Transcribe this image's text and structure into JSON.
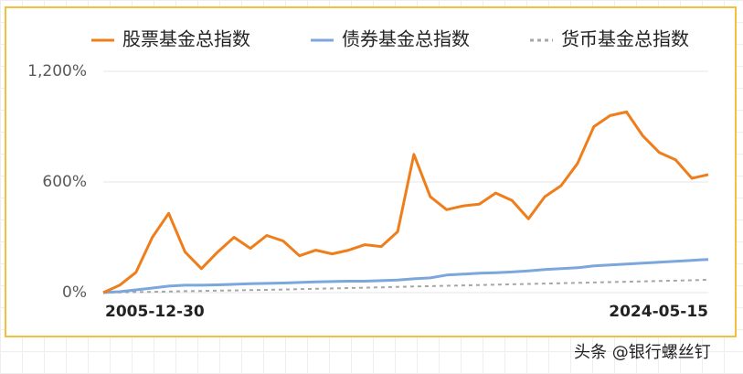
{
  "chart_data": {
    "type": "line",
    "categories": [
      "2005-12-30",
      null,
      null,
      null,
      null,
      null,
      null,
      null,
      null,
      null,
      null,
      null,
      null,
      null,
      null,
      null,
      null,
      null,
      null,
      null,
      null,
      null,
      null,
      null,
      null,
      null,
      null,
      null,
      null,
      null,
      null,
      null,
      null,
      null,
      null,
      null,
      null,
      "2024-05-15"
    ],
    "series": [
      {
        "name": "股票基金总指数",
        "color": "#ef7d1a",
        "style": "solid",
        "values": [
          0,
          40,
          110,
          300,
          430,
          220,
          130,
          220,
          300,
          240,
          310,
          280,
          200,
          230,
          210,
          230,
          260,
          250,
          330,
          750,
          520,
          450,
          470,
          480,
          540,
          500,
          400,
          520,
          580,
          700,
          900,
          960,
          980,
          850,
          760,
          720,
          620,
          640
        ]
      },
      {
        "name": "债券基金总指数",
        "color": "#7ba7dc",
        "style": "solid",
        "values": [
          0,
          5,
          15,
          25,
          35,
          40,
          40,
          42,
          45,
          48,
          50,
          52,
          55,
          58,
          60,
          62,
          62,
          65,
          68,
          75,
          80,
          95,
          100,
          105,
          108,
          112,
          118,
          125,
          130,
          135,
          145,
          150,
          155,
          160,
          165,
          170,
          175,
          180
        ]
      },
      {
        "name": "货币基金总指数",
        "color": "#a6a6a6",
        "style": "dashed",
        "values": [
          0,
          1,
          3,
          4,
          6,
          8,
          9,
          11,
          12,
          14,
          15,
          17,
          19,
          21,
          23,
          25,
          27,
          29,
          31,
          33,
          35,
          37,
          39,
          41,
          43,
          45,
          47,
          49,
          51,
          53,
          55,
          57,
          59,
          61,
          63,
          65,
          67,
          70
        ]
      }
    ],
    "ylim": [
      0,
      1200
    ],
    "yticks": [
      {
        "value": 0,
        "label": "0%"
      },
      {
        "value": 600,
        "label": "600%"
      },
      {
        "value": 1200,
        "label": "1,200%"
      }
    ],
    "grid": true,
    "legend": "top"
  },
  "watermark": "头条 @银行螺丝钉"
}
